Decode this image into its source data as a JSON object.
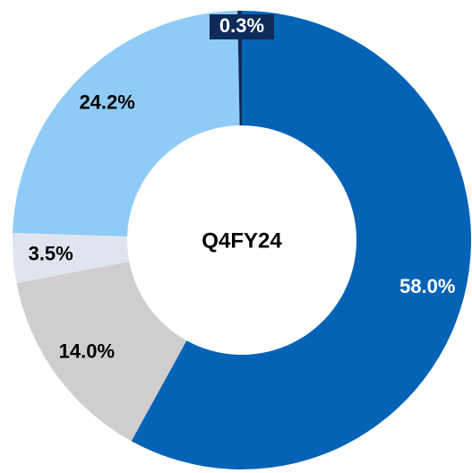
{
  "chart_data": {
    "type": "donut",
    "center_label": "Q4FY24",
    "values": [
      58.0,
      14.0,
      3.5,
      24.2,
      0.3
    ],
    "value_labels": [
      "58.0%",
      "14.0%",
      "3.5%",
      "24.2%",
      "0.3%"
    ],
    "colors": [
      "#0563b5",
      "#cfcdce",
      "#dfe5ef",
      "#8ecbf6",
      "#0e2b5a"
    ]
  }
}
